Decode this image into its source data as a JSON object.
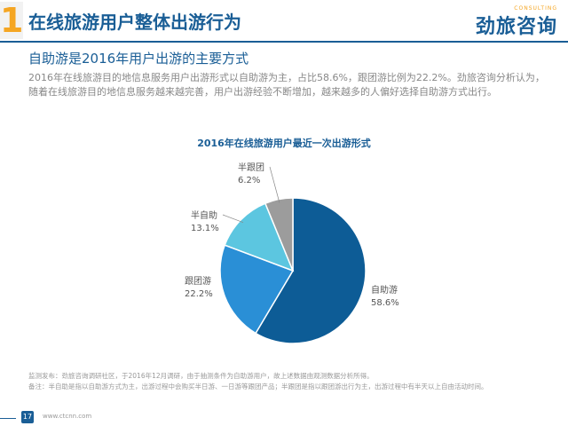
{
  "header": {
    "section_number": "1",
    "title": "在线旅游用户整体出游行为",
    "logo_text": "劲旅咨询",
    "logo_sub": "CONSULTING"
  },
  "subtitle": "自助游是2016年用户出游的主要方式",
  "paragraph": "2016年在线旅游目的地信息服务用户出游形式以自助游为主，占比58.6%，跟团游比例为22.2%。劲旅咨询分析认为，随着在线旅游目的地信息服务越来越完善，用户出游经验不断增加，越来越多的人偏好选择自助游方式出行。",
  "footnotes": {
    "line1": "监测发布：劲旅咨询调研社区，于2016年12月调研，由于抽测条件为自助游用户，故上述数据由观测数据分析所得。",
    "line2": "备注：半自助是指以自助游方式为主，出游过程中会购买半日游、一日游等跟团产品；半跟团是指以跟团游出行为主，出游过程中有半天以上自由活动时间。"
  },
  "footer": {
    "page_number": "17",
    "website": "www.ctcnn.com"
  },
  "colors": {
    "brand_blue": "#1a5e96",
    "accent_orange": "#f5a623"
  },
  "chart_data": {
    "type": "pie",
    "title": "2016年在线旅游用户最近一次出游形式",
    "slices": [
      {
        "name": "自助游",
        "value": 58.6,
        "label": "58.6%",
        "color": "#0d5c96"
      },
      {
        "name": "跟团游",
        "value": 22.2,
        "label": "22.2%",
        "color": "#2a8fd6"
      },
      {
        "name": "半自助",
        "value": 13.1,
        "label": "13.1%",
        "color": "#5cc6e0"
      },
      {
        "name": "半跟团",
        "value": 6.2,
        "label": "6.2%",
        "color": "#9c9c9c"
      }
    ],
    "start": "12 o'clock, clockwise",
    "legend": "none (labels beside slices)"
  }
}
